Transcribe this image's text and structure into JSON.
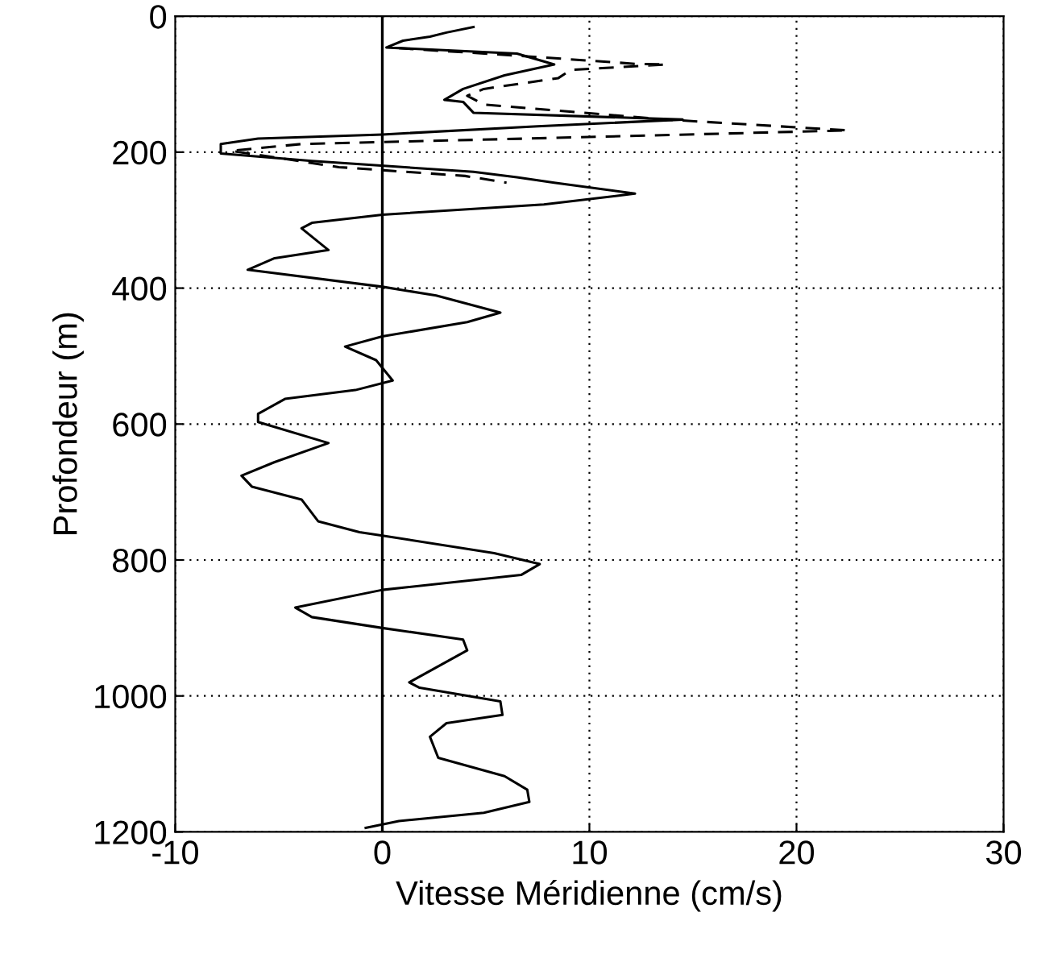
{
  "chart_data": {
    "type": "line",
    "xlabel": "Vitesse Méridienne (cm/s)",
    "ylabel": "Profondeur (m)",
    "xlim": [
      -10,
      30
    ],
    "xticks": [
      -10,
      0,
      10,
      20,
      30
    ],
    "ylim": [
      1200,
      0
    ],
    "yticks": [
      0,
      200,
      400,
      600,
      800,
      1000,
      1200
    ],
    "grid": true,
    "legend": false,
    "ref_lines": [
      {
        "axis": "x",
        "value": 0,
        "color": "#000000",
        "line_style": "solid"
      }
    ],
    "series": [
      {
        "color": "#000000",
        "line_style": "solid",
        "x": [
          4.4,
          3.1,
          2.3,
          1.0,
          0.2,
          6.5,
          8.3,
          5.9,
          3.9,
          3.0,
          3.9,
          4.4,
          14.5,
          7.5,
          0,
          -6.0,
          -7.8,
          -7.8,
          -3.4,
          4.4,
          6.5,
          8.3,
          12.2,
          7.8,
          0,
          -3.4,
          -3.9,
          -2.6,
          -5.2,
          -6.5,
          0,
          2.6,
          5.7,
          4.1,
          0,
          -1.8,
          -0.3,
          0.5,
          -1.3,
          -4.7,
          -6.0,
          -6.0,
          -2.6,
          -5.2,
          -6.8,
          -6.3,
          -3.9,
          -3.1,
          -1.1,
          0,
          5.4,
          7.6,
          6.7,
          0,
          -4.2,
          -3.4,
          0,
          3.9,
          4.1,
          1.3,
          1.8,
          5.7,
          5.8,
          3.1,
          2.3,
          2.7,
          5.9,
          7.0,
          7.1,
          4.9,
          0.8,
          -0.8
        ],
        "values": [
          16,
          24,
          30,
          36,
          46,
          55,
          71,
          87,
          107,
          123,
          126,
          142,
          152,
          162,
          174,
          180,
          188,
          202,
          213,
          229,
          237,
          245,
          261,
          277,
          292,
          304,
          312,
          344,
          356,
          373,
          398,
          411,
          436,
          450,
          471,
          486,
          506,
          536,
          550,
          563,
          585,
          597,
          628,
          656,
          676,
          692,
          711,
          743,
          759,
          764,
          790,
          806,
          822,
          844,
          870,
          884,
          900,
          917,
          933,
          980,
          988,
          1008,
          1028,
          1040,
          1060,
          1091,
          1118,
          1138,
          1156,
          1172,
          1184,
          1194
        ]
      },
      {
        "color": "#000000",
        "line_style": "dashed",
        "x": [
          0.8,
          7.0,
          12.2,
          13.7,
          9.1,
          8.5,
          4.9,
          4.1,
          4.9,
          13.7,
          22.5,
          7.0,
          -3.9,
          -7.3,
          -2.1,
          4.0,
          6.0
        ],
        "values": [
          47,
          59,
          70,
          71,
          79,
          91,
          107,
          117,
          130,
          152,
          168,
          180,
          188,
          198,
          222,
          235,
          245
        ]
      }
    ]
  }
}
